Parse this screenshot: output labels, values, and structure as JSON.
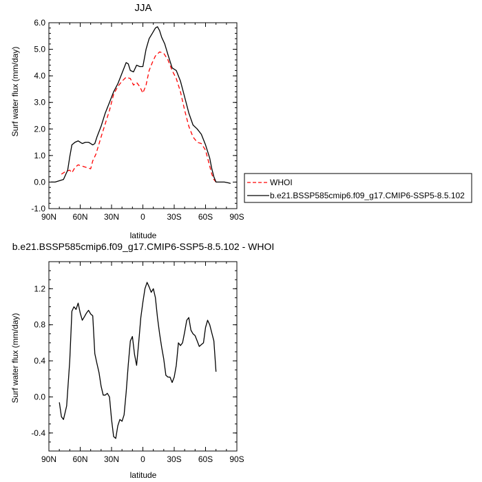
{
  "chart_data": [
    {
      "type": "line",
      "title": "JJA",
      "xlabel": "latitude",
      "ylabel": "Surf water flux (mm/day)",
      "xlim": [
        -90,
        90
      ],
      "ylim": [
        -1.0,
        6.0
      ],
      "xticks": [
        -90,
        -60,
        -30,
        0,
        30,
        60,
        90
      ],
      "xticklabels": [
        "90N",
        "60N",
        "30N",
        "0",
        "30S",
        "60S",
        "90S"
      ],
      "yticks": [
        -1.0,
        0.0,
        1.0,
        2.0,
        3.0,
        4.0,
        5.0,
        6.0
      ],
      "yticklabels": [
        "-1.0",
        "0.0",
        "1.0",
        "2.0",
        "3.0",
        "4.0",
        "5.0",
        "6.0"
      ],
      "legend": {
        "placement": "right-outside",
        "entries": [
          {
            "label": "WHOI",
            "color": "#ff0000",
            "dash": "dashed"
          },
          {
            "label": "b.e21.BSSP585cmip6.f09_g17.CMIP6-SSP5-8.5.102",
            "color": "#000000",
            "dash": "solid"
          }
        ]
      },
      "series": [
        {
          "name": "WHOI",
          "color": "#ff0000",
          "dash": "dashed",
          "points": [
            [
              -78,
              0.3
            ],
            [
              -74,
              0.4
            ],
            [
              -70,
              0.45
            ],
            [
              -68,
              0.35
            ],
            [
              -65,
              0.55
            ],
            [
              -62,
              0.65
            ],
            [
              -58,
              0.6
            ],
            [
              -54,
              0.55
            ],
            [
              -50,
              0.5
            ],
            [
              -48,
              0.8
            ],
            [
              -45,
              1.05
            ],
            [
              -40,
              1.7
            ],
            [
              -36,
              2.2
            ],
            [
              -32,
              2.7
            ],
            [
              -28,
              3.3
            ],
            [
              -24,
              3.6
            ],
            [
              -20,
              3.8
            ],
            [
              -16,
              3.95
            ],
            [
              -12,
              3.9
            ],
            [
              -9,
              3.65
            ],
            [
              -6,
              3.75
            ],
            [
              -3,
              3.6
            ],
            [
              0,
              3.35
            ],
            [
              3,
              3.65
            ],
            [
              6,
              4.2
            ],
            [
              9,
              4.5
            ],
            [
              12,
              4.75
            ],
            [
              16,
              4.9
            ],
            [
              20,
              4.85
            ],
            [
              24,
              4.6
            ],
            [
              28,
              4.2
            ],
            [
              32,
              3.9
            ],
            [
              36,
              3.4
            ],
            [
              40,
              2.7
            ],
            [
              44,
              2.1
            ],
            [
              48,
              1.7
            ],
            [
              52,
              1.5
            ],
            [
              56,
              1.45
            ],
            [
              60,
              1.2
            ],
            [
              62,
              0.9
            ],
            [
              64,
              0.6
            ],
            [
              66,
              0.3
            ],
            [
              68,
              0.1
            ],
            [
              70,
              0.0
            ],
            [
              72,
              -0.05
            ]
          ]
        },
        {
          "name": "b.e21.BSSP585cmip6.f09_g17.CMIP6-SSP5-8.5.102",
          "color": "#000000",
          "dash": "solid",
          "points": [
            [
              -88,
              0.0
            ],
            [
              -84,
              0.0
            ],
            [
              -80,
              0.05
            ],
            [
              -76,
              0.1
            ],
            [
              -72,
              0.45
            ],
            [
              -70,
              0.95
            ],
            [
              -68,
              1.4
            ],
            [
              -65,
              1.5
            ],
            [
              -62,
              1.55
            ],
            [
              -60,
              1.5
            ],
            [
              -58,
              1.45
            ],
            [
              -55,
              1.5
            ],
            [
              -52,
              1.5
            ],
            [
              -48,
              1.4
            ],
            [
              -46,
              1.45
            ],
            [
              -44,
              1.7
            ],
            [
              -40,
              2.1
            ],
            [
              -36,
              2.6
            ],
            [
              -32,
              3.0
            ],
            [
              -28,
              3.4
            ],
            [
              -24,
              3.7
            ],
            [
              -20,
              4.1
            ],
            [
              -16,
              4.5
            ],
            [
              -14,
              4.45
            ],
            [
              -12,
              4.2
            ],
            [
              -9,
              4.15
            ],
            [
              -6,
              4.4
            ],
            [
              -3,
              4.35
            ],
            [
              0,
              4.35
            ],
            [
              3,
              5.0
            ],
            [
              6,
              5.4
            ],
            [
              9,
              5.6
            ],
            [
              12,
              5.8
            ],
            [
              14,
              5.85
            ],
            [
              16,
              5.7
            ],
            [
              18,
              5.45
            ],
            [
              21,
              5.2
            ],
            [
              24,
              4.8
            ],
            [
              28,
              4.3
            ],
            [
              32,
              4.2
            ],
            [
              36,
              3.8
            ],
            [
              40,
              3.2
            ],
            [
              44,
              2.6
            ],
            [
              48,
              2.15
            ],
            [
              52,
              2.0
            ],
            [
              56,
              1.8
            ],
            [
              60,
              1.4
            ],
            [
              64,
              0.9
            ],
            [
              66,
              0.5
            ],
            [
              68,
              0.2
            ],
            [
              70,
              0.0
            ],
            [
              74,
              0.0
            ],
            [
              78,
              0.0
            ],
            [
              82,
              -0.03
            ],
            [
              84,
              -0.05
            ]
          ]
        }
      ]
    },
    {
      "type": "line",
      "title": "b.e21.BSSP585cmip6.f09_g17.CMIP6-SSP5-8.5.102 - WHOI",
      "xlabel": "latitude",
      "ylabel": "Surf water flux (mm/day)",
      "xlim": [
        -90,
        90
      ],
      "ylim": [
        -0.6,
        1.5
      ],
      "xticks": [
        -90,
        -60,
        -30,
        0,
        30,
        60,
        90
      ],
      "xticklabels": [
        "90N",
        "60N",
        "30N",
        "0",
        "30S",
        "60S",
        "90S"
      ],
      "yticks": [
        -0.4,
        0.0,
        0.4,
        0.8,
        1.2
      ],
      "yticklabels": [
        "-0.4",
        "0.0",
        "0.4",
        "0.8",
        "1.2"
      ],
      "series": [
        {
          "color": "#000000",
          "dash": "solid",
          "points": [
            [
              -80,
              -0.06
            ],
            [
              -78,
              -0.22
            ],
            [
              -76,
              -0.25
            ],
            [
              -73,
              -0.1
            ],
            [
              -70,
              0.4
            ],
            [
              -68,
              0.95
            ],
            [
              -66,
              1.0
            ],
            [
              -64,
              0.97
            ],
            [
              -62,
              1.04
            ],
            [
              -60,
              0.93
            ],
            [
              -58,
              0.85
            ],
            [
              -56,
              0.89
            ],
            [
              -54,
              0.93
            ],
            [
              -52,
              0.96
            ],
            [
              -50,
              0.92
            ],
            [
              -48,
              0.9
            ],
            [
              -46,
              0.48
            ],
            [
              -44,
              0.37
            ],
            [
              -42,
              0.27
            ],
            [
              -40,
              0.12
            ],
            [
              -38,
              0.02
            ],
            [
              -36,
              0.02
            ],
            [
              -34,
              0.04
            ],
            [
              -32,
              0.0
            ],
            [
              -30,
              -0.25
            ],
            [
              -28,
              -0.44
            ],
            [
              -26,
              -0.46
            ],
            [
              -24,
              -0.32
            ],
            [
              -22,
              -0.25
            ],
            [
              -20,
              -0.27
            ],
            [
              -18,
              -0.2
            ],
            [
              -16,
              0.05
            ],
            [
              -14,
              0.36
            ],
            [
              -12,
              0.62
            ],
            [
              -10,
              0.67
            ],
            [
              -8,
              0.47
            ],
            [
              -6,
              0.35
            ],
            [
              -4,
              0.6
            ],
            [
              -2,
              0.88
            ],
            [
              0,
              1.05
            ],
            [
              2,
              1.2
            ],
            [
              4,
              1.27
            ],
            [
              6,
              1.22
            ],
            [
              8,
              1.16
            ],
            [
              10,
              1.2
            ],
            [
              12,
              1.1
            ],
            [
              14,
              0.88
            ],
            [
              16,
              0.7
            ],
            [
              18,
              0.55
            ],
            [
              20,
              0.42
            ],
            [
              22,
              0.24
            ],
            [
              24,
              0.22
            ],
            [
              26,
              0.22
            ],
            [
              28,
              0.16
            ],
            [
              30,
              0.22
            ],
            [
              32,
              0.35
            ],
            [
              34,
              0.6
            ],
            [
              36,
              0.57
            ],
            [
              38,
              0.6
            ],
            [
              40,
              0.72
            ],
            [
              42,
              0.85
            ],
            [
              44,
              0.88
            ],
            [
              46,
              0.74
            ],
            [
              48,
              0.7
            ],
            [
              50,
              0.68
            ],
            [
              52,
              0.62
            ],
            [
              54,
              0.56
            ],
            [
              56,
              0.58
            ],
            [
              58,
              0.6
            ],
            [
              60,
              0.77
            ],
            [
              62,
              0.85
            ],
            [
              64,
              0.8
            ],
            [
              66,
              0.71
            ],
            [
              68,
              0.62
            ],
            [
              70,
              0.28
            ]
          ]
        }
      ]
    }
  ]
}
